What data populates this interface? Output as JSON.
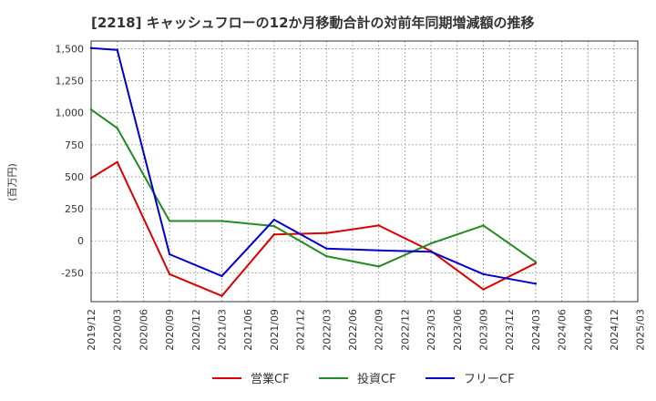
{
  "chart_data": {
    "type": "line",
    "title": "[2218]  キャッシュフローの12か月移動合計の対前年同期増減額の推移",
    "ylabel": "(百万円)",
    "xlabel": "",
    "ylim": [
      -475,
      1560
    ],
    "yticks": [
      -250,
      0,
      250,
      500,
      750,
      1000,
      1250,
      1500
    ],
    "ytick_labels": [
      "-250",
      "0",
      "250",
      "500",
      "750",
      "1,000",
      "1,250",
      "1,500"
    ],
    "xticks": [
      "2019/12",
      "2020/03",
      "2020/06",
      "2020/09",
      "2020/12",
      "2021/03",
      "2021/06",
      "2021/09",
      "2021/12",
      "2022/03",
      "2022/06",
      "2022/09",
      "2022/12",
      "2023/03",
      "2023/06",
      "2023/09",
      "2023/12",
      "2024/03",
      "2024/06",
      "2024/09",
      "2024/12",
      "2025/03"
    ],
    "grid": true,
    "legend_position": "bottom",
    "series": [
      {
        "name": "営業CF",
        "color": "#dd0000",
        "x": [
          "2019/12",
          "2020/03",
          "2020/09",
          "2021/03",
          "2021/09",
          "2022/03",
          "2022/09",
          "2023/03",
          "2023/09",
          "2024/03"
        ],
        "values": [
          490,
          615,
          -260,
          -430,
          50,
          60,
          120,
          -80,
          -380,
          -175
        ]
      },
      {
        "name": "投資CF",
        "color": "#228b22",
        "x": [
          "2019/12",
          "2020/03",
          "2020/09",
          "2021/03",
          "2021/09",
          "2022/03",
          "2022/09",
          "2023/03",
          "2023/09",
          "2024/03"
        ],
        "values": [
          1025,
          880,
          155,
          155,
          115,
          -120,
          -200,
          -20,
          120,
          -165
        ]
      },
      {
        "name": "フリーCF",
        "color": "#0000cc",
        "x": [
          "2019/12",
          "2020/03",
          "2020/09",
          "2021/03",
          "2021/09",
          "2022/03",
          "2022/09",
          "2023/03",
          "2023/09",
          "2024/03"
        ],
        "values": [
          1505,
          1490,
          -105,
          -275,
          165,
          -60,
          -75,
          -85,
          -260,
          -335
        ]
      }
    ]
  }
}
